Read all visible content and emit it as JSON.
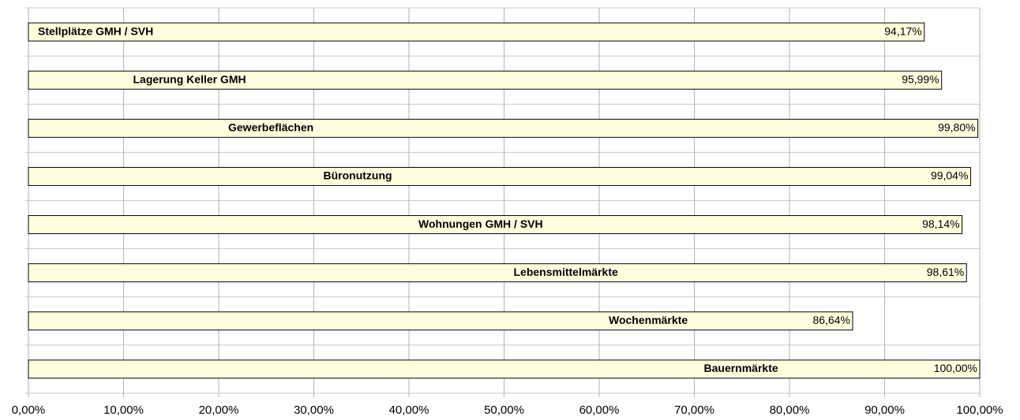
{
  "chart_data": {
    "type": "hbar",
    "categories": [
      "Stellplätze GMH / SVH",
      "Lagerung Keller GMH",
      "Gewerbeflächen",
      "Büronutzung",
      "Wohnungen GMH / SVH",
      "Lebensmittelmärkte",
      "Wochenmärkte",
      "Bauernmärkte"
    ],
    "values": [
      94.17,
      95.99,
      99.8,
      99.04,
      98.14,
      98.61,
      86.64,
      100.0
    ],
    "value_labels": [
      "94,17%",
      "95,99%",
      "99,80%",
      "99,04%",
      "98,14%",
      "98,61%",
      "86,64%",
      "100,00%"
    ],
    "color": "#ffffe0",
    "xlim": [
      0,
      100
    ],
    "xticks": [
      {
        "value": 0,
        "label": "0,00%"
      },
      {
        "value": 10,
        "label": "10,00%"
      },
      {
        "value": 20,
        "label": "20,00%"
      },
      {
        "value": 30,
        "label": "30,00%"
      },
      {
        "value": 40,
        "label": "40,00%"
      },
      {
        "value": 50,
        "label": "50,00%"
      },
      {
        "value": 60,
        "label": "60,00%"
      },
      {
        "value": 70,
        "label": "70,00%"
      },
      {
        "value": 80,
        "label": "80,00%"
      },
      {
        "value": 90,
        "label": "90,00%"
      },
      {
        "value": 100,
        "label": "100,00%"
      }
    ],
    "grid": true
  }
}
